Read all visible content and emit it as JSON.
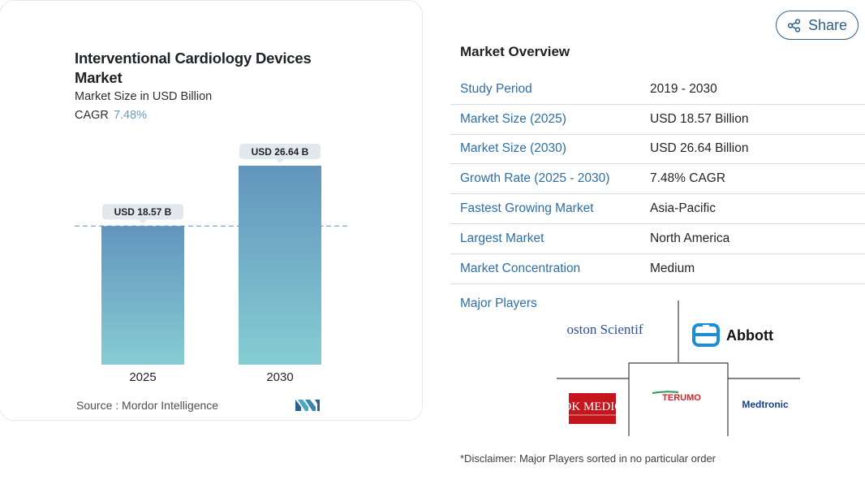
{
  "chart_data": {
    "type": "bar",
    "title": "Interventional Cardiology Devices Market",
    "subtitle": "Market Size in USD Billion",
    "cagr_label": "CAGR",
    "cagr_value": "7.48%",
    "categories": [
      "2025",
      "2030"
    ],
    "values": [
      18.57,
      26.64
    ],
    "data_labels": [
      "USD 18.57 B",
      "USD 26.64 B"
    ],
    "colors": {
      "bar_top": "#6295bd",
      "bar_bottom": "#86cdd3",
      "label_bg": "#e3e8ec",
      "dashed_line": "#5a93b8"
    }
  },
  "source_label": "Source :",
  "source_value": "Mordor Intelligence",
  "share": {
    "label": "Share",
    "icon": "share-icon"
  },
  "overview": {
    "title": "Market Overview",
    "rows": [
      {
        "key": "Study Period",
        "value": "2019 - 2030"
      },
      {
        "key": "Market Size (2025)",
        "value": "USD 18.57 Billion"
      },
      {
        "key": "Market Size (2030)",
        "value": "USD 26.64 Billion"
      },
      {
        "key": "Growth Rate (2025 - 2030)",
        "value": "7.48% CAGR"
      },
      {
        "key": "Fastest Growing Market",
        "value": "Asia-Pacific"
      },
      {
        "key": "Largest Market",
        "value": "North America"
      },
      {
        "key": "Market Concentration",
        "value": "Medium"
      }
    ]
  },
  "major_players": {
    "label": "Major Players",
    "logos": [
      "Boston Scientific",
      "Abbott",
      "COOK MEDICAL",
      "TERUMO",
      "Medtronic"
    ]
  },
  "disclaimer": "*Disclaimer: Major Players sorted in no particular order",
  "colors": {
    "link": "#2e6ea8",
    "accent": "#2f5f8a"
  }
}
